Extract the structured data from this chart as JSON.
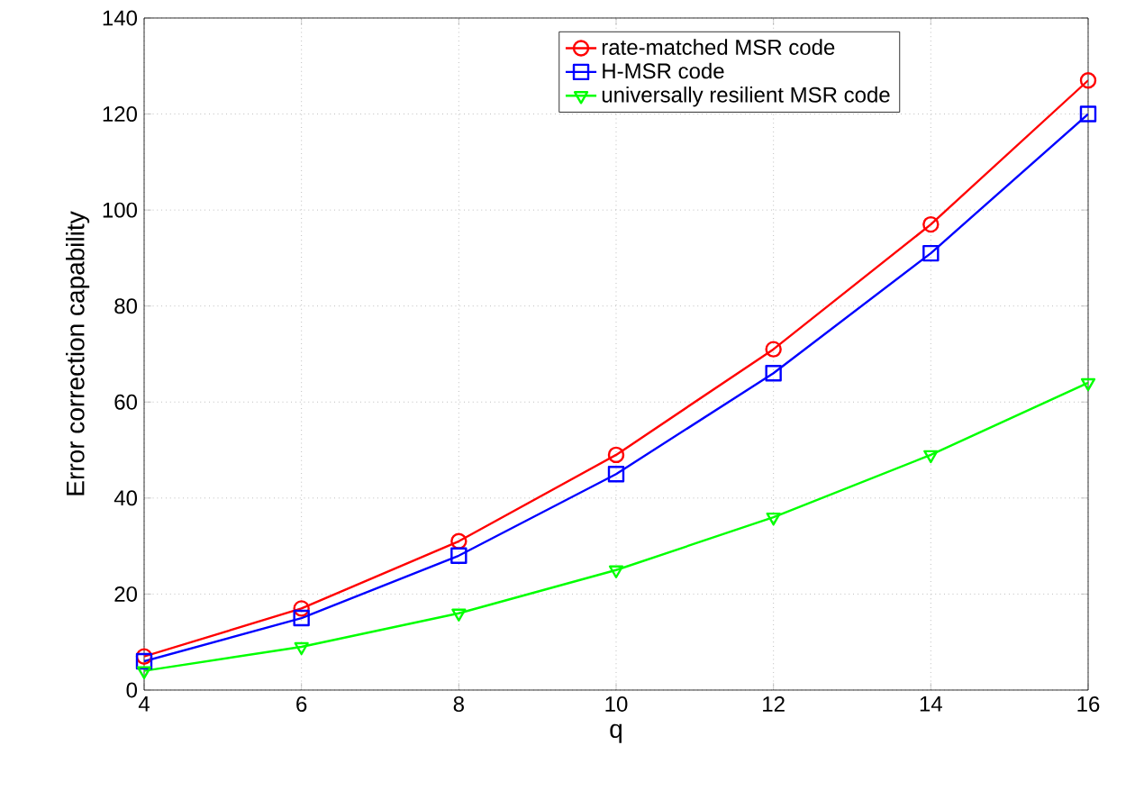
{
  "chart_data": {
    "type": "line",
    "xlabel": "q",
    "ylabel": "Error correction capability",
    "x": [
      4,
      6,
      8,
      10,
      12,
      14,
      16
    ],
    "series": [
      {
        "name": "rate-matched MSR code",
        "color": "#ff0000",
        "marker": "circle",
        "values": [
          7,
          17,
          31,
          49,
          71,
          97,
          127
        ]
      },
      {
        "name": "H-MSR code",
        "color": "#0000ff",
        "marker": "square",
        "values": [
          6,
          15,
          28,
          45,
          66,
          91,
          120
        ]
      },
      {
        "name": "universally resilient MSR code",
        "color": "#00ff00",
        "marker": "triangle",
        "values": [
          4,
          9,
          16,
          25,
          36,
          49,
          64
        ]
      }
    ],
    "xlim": [
      4,
      16
    ],
    "xticks": [
      4,
      6,
      8,
      10,
      12,
      14,
      16
    ],
    "ylim": [
      0,
      140
    ],
    "yticks": [
      0,
      20,
      40,
      60,
      80,
      100,
      120,
      140
    ],
    "grid": true,
    "legend": "top",
    "line_style": "solid"
  }
}
